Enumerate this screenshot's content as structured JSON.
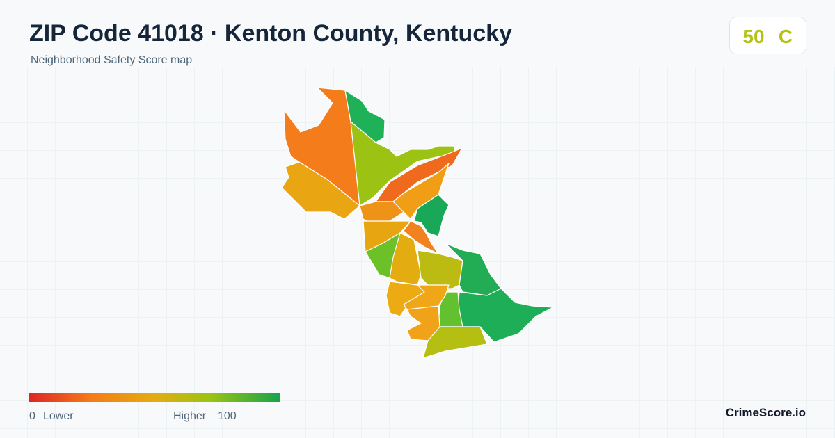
{
  "header": {
    "title": "ZIP Code 41018 · Kenton County, Kentucky",
    "subtitle": "Neighborhood Safety Score map"
  },
  "score": {
    "value": 50,
    "grade": "C"
  },
  "legend": {
    "min": 0,
    "min_label": "Lower",
    "max_label": "Higher",
    "max": 100
  },
  "brand": "CrimeScore.io"
}
